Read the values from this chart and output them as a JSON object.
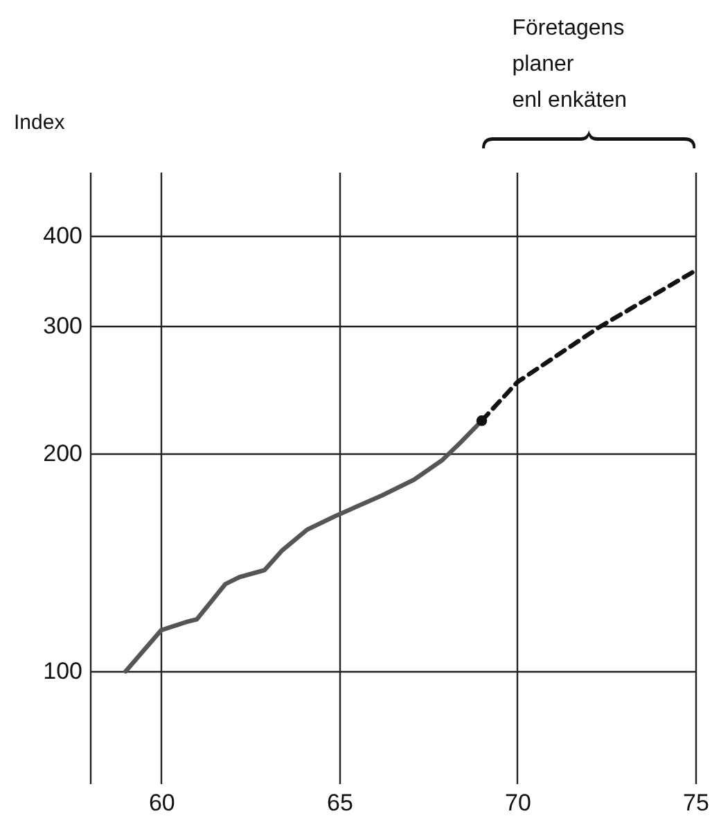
{
  "chart_data": {
    "type": "line",
    "ylabel": "Index",
    "annotations": [
      "Företagens\nplaner\nenl enkäten"
    ],
    "xlim": [
      58,
      75
    ],
    "xticks": [
      60,
      65,
      70,
      75
    ],
    "ylim": [
      70,
      490
    ],
    "yticks": [
      100,
      200,
      300,
      400
    ],
    "log": true,
    "grid": true,
    "series": [
      {
        "color": "#555555",
        "line_style": "solid",
        "x": [
          59.0,
          60.0,
          60.7,
          61.0,
          61.8,
          62.2,
          62.9,
          63.4,
          64.1,
          64.9,
          66.2,
          67.1,
          67.9,
          68.4,
          69.0
        ],
        "values": [
          100,
          114,
          117,
          118,
          132,
          135,
          138,
          147,
          157,
          164,
          175,
          184,
          196,
          207,
          222
        ]
      },
      {
        "color": "#111111",
        "line_style": "dashed",
        "x": [
          69.0,
          70.0,
          72.3,
          75.0
        ],
        "values": [
          222,
          251,
          299,
          358
        ]
      },
      {
        "type": "scatter",
        "color": "#111111",
        "x": [
          69.0
        ],
        "values": [
          222
        ]
      }
    ]
  }
}
